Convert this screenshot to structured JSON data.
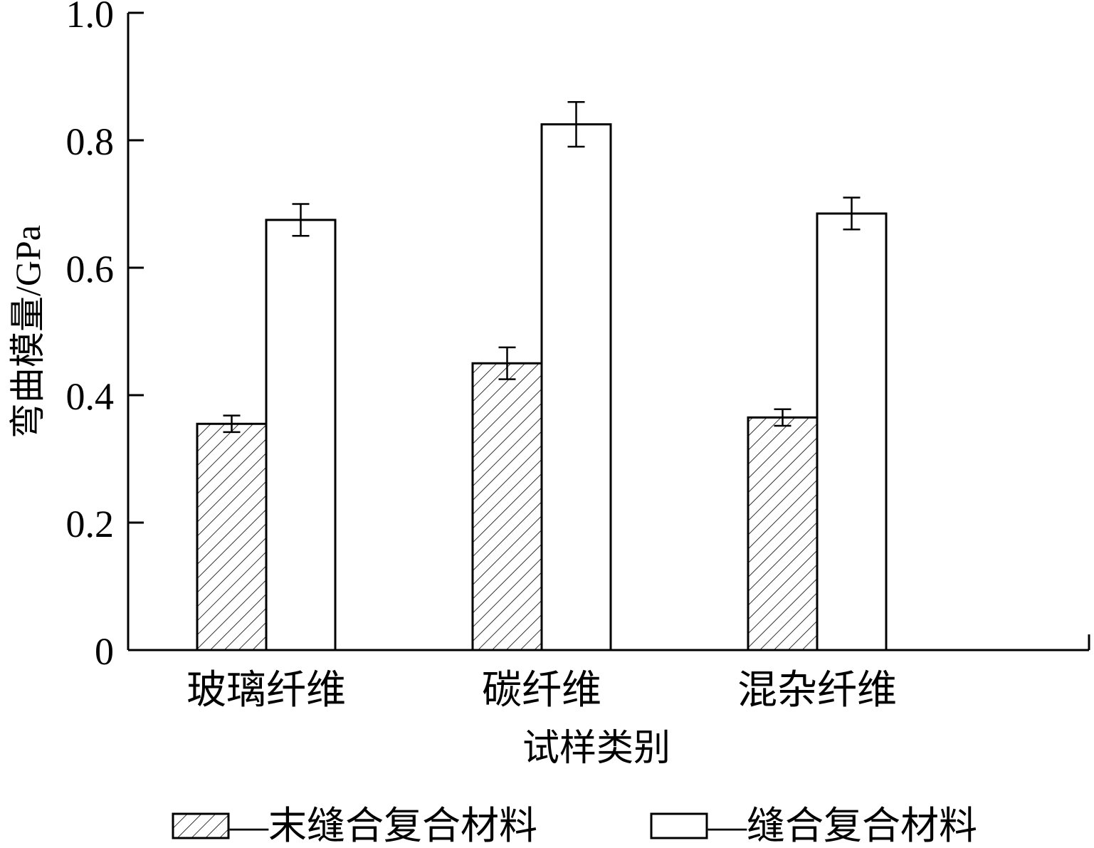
{
  "chart_data": {
    "type": "bar",
    "categories": [
      "玻璃纤维",
      "碳纤维",
      "混杂纤维"
    ],
    "series": [
      {
        "name": "末缝合复合材料",
        "pattern": "hatched",
        "values": [
          0.355,
          0.45,
          0.365
        ],
        "errors": [
          0.013,
          0.025,
          0.013
        ]
      },
      {
        "name": "缝合复合材料",
        "pattern": "plain",
        "values": [
          0.675,
          0.825,
          0.685
        ],
        "errors": [
          0.025,
          0.035,
          0.025
        ]
      }
    ],
    "xlabel": "试样类别",
    "ylabel": "弯曲模量/GPa",
    "ylim": [
      0,
      1.0
    ],
    "yticks": [
      0,
      0.2,
      0.4,
      0.6,
      0.8,
      1.0
    ],
    "ytick_labels": [
      "0",
      "0.2",
      "0.4",
      "0.6",
      "0.8",
      "1.0"
    ],
    "legend_position": "bottom",
    "legend_separator": "—",
    "grid": false,
    "colors": {
      "stroke": "#000000",
      "fill": "#ffffff"
    }
  }
}
